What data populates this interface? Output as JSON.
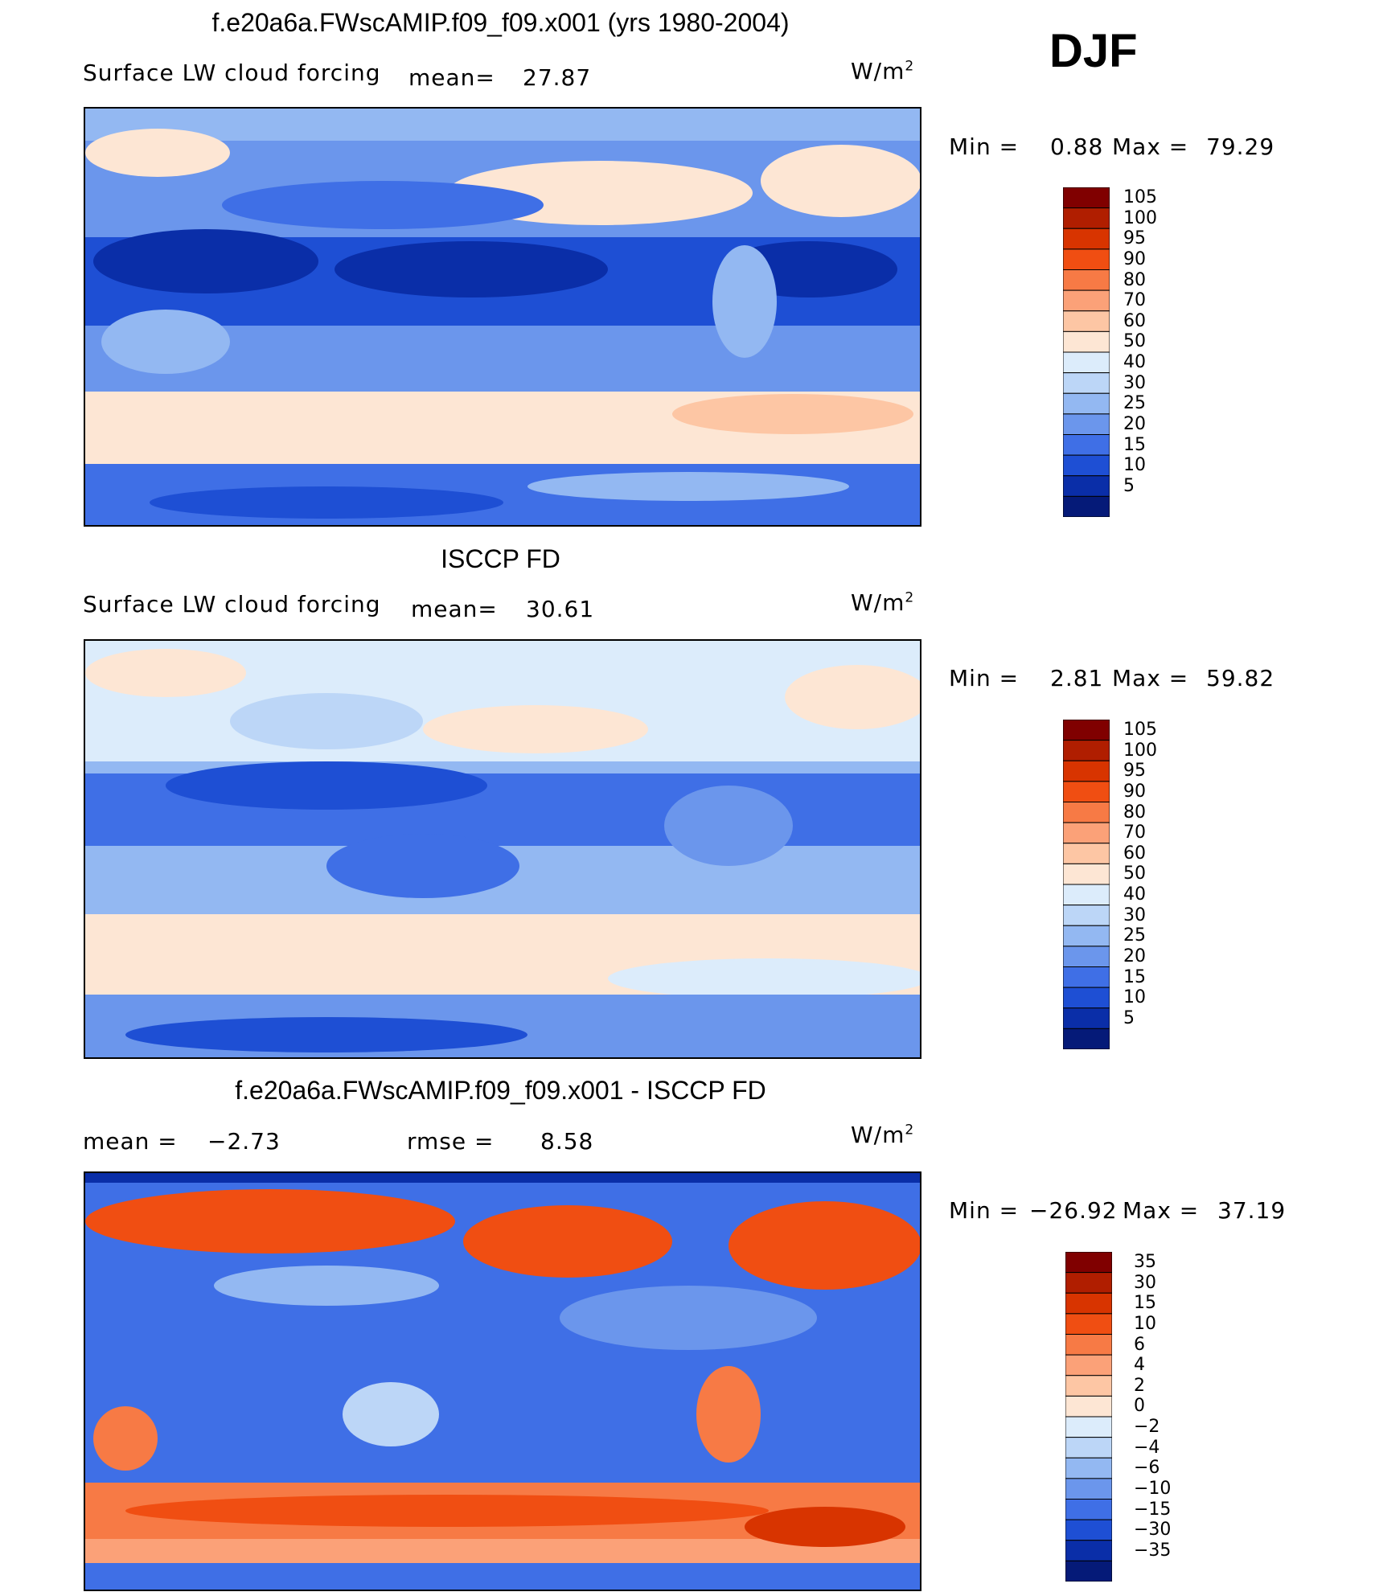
{
  "season": "DJF",
  "panels": [
    {
      "id": "model",
      "title": "f.e20a6a.FWscAMIP.f09_f09.x001 (yrs 1980-2004)",
      "subtitle": "Surface LW cloud forcing",
      "mean_label": "mean=",
      "mean_value": "27.87",
      "units": "W/m",
      "units_sup": "2",
      "min_label": "Min  =",
      "min_value": "0.88",
      "max_label": "Max  =",
      "max_value": "79.29"
    },
    {
      "id": "obs",
      "title": "ISCCP FD",
      "subtitle": "Surface LW cloud forcing",
      "mean_label": "mean=",
      "mean_value": "30.61",
      "units": "W/m",
      "units_sup": "2",
      "min_label": "Min  =",
      "min_value": "2.81",
      "max_label": "Max  =",
      "max_value": "59.82"
    },
    {
      "id": "diff",
      "title": "f.e20a6a.FWscAMIP.f09_f09.x001 - ISCCP FD",
      "mean_label": "mean  =",
      "mean_value": "−2.73",
      "rmse_label": "rmse  =",
      "rmse_value": "8.58",
      "units": "W/m",
      "units_sup": "2",
      "min_label": "Min  =",
      "min_value": "−26.92",
      "max_label": "Max  =",
      "max_value": "37.19"
    }
  ],
  "colorbars": {
    "absolute": {
      "labels": [
        "105",
        "100",
        "95",
        "90",
        "80",
        "70",
        "60",
        "50",
        "40",
        "30",
        "25",
        "20",
        "15",
        "10",
        "5"
      ],
      "colors": [
        "#800000",
        "#b01e00",
        "#d83400",
        "#f04e12",
        "#f77a45",
        "#fba178",
        "#fdc6a4",
        "#fde6d4",
        "#dcecfb",
        "#bcd6f7",
        "#93b8f2",
        "#6b96ec",
        "#3f6fe6",
        "#1e4fd4",
        "#0a2ea8",
        "#051a78"
      ]
    },
    "difference": {
      "labels": [
        "35",
        "30",
        "15",
        "10",
        "6",
        "4",
        "2",
        "0",
        "−2",
        "−4",
        "−6",
        "−10",
        "−15",
        "−30",
        "−35"
      ],
      "colors": [
        "#800000",
        "#b01e00",
        "#d83400",
        "#f04e12",
        "#f77a45",
        "#fba178",
        "#fdc6a4",
        "#fde6d4",
        "#dcecfb",
        "#bcd6f7",
        "#93b8f2",
        "#6b96ec",
        "#3f6fe6",
        "#1e4fd4",
        "#0a2ea8",
        "#051a78"
      ]
    }
  },
  "chart_data": [
    {
      "type": "heatmap",
      "title": "f.e20a6a.FWscAMIP.f09_f09.x001 (yrs 1980-2004)",
      "subtitle": "Surface LW cloud forcing",
      "units": "W/m2",
      "season": "DJF",
      "mean": 27.87,
      "min": 0.88,
      "max": 79.29,
      "levels": [
        5,
        10,
        15,
        20,
        25,
        30,
        40,
        50,
        60,
        70,
        80,
        90,
        95,
        100,
        105
      ]
    },
    {
      "type": "heatmap",
      "title": "ISCCP FD",
      "subtitle": "Surface LW cloud forcing",
      "units": "W/m2",
      "season": "DJF",
      "mean": 30.61,
      "min": 2.81,
      "max": 59.82,
      "levels": [
        5,
        10,
        15,
        20,
        25,
        30,
        40,
        50,
        60,
        70,
        80,
        90,
        95,
        100,
        105
      ]
    },
    {
      "type": "heatmap",
      "title": "f.e20a6a.FWscAMIP.f09_f09.x001 - ISCCP FD",
      "units": "W/m2",
      "season": "DJF",
      "mean": -2.73,
      "rmse": 8.58,
      "min": -26.92,
      "max": 37.19,
      "levels": [
        -35,
        -30,
        -15,
        -10,
        -6,
        -4,
        -2,
        0,
        2,
        4,
        6,
        10,
        15,
        30,
        35
      ]
    }
  ]
}
